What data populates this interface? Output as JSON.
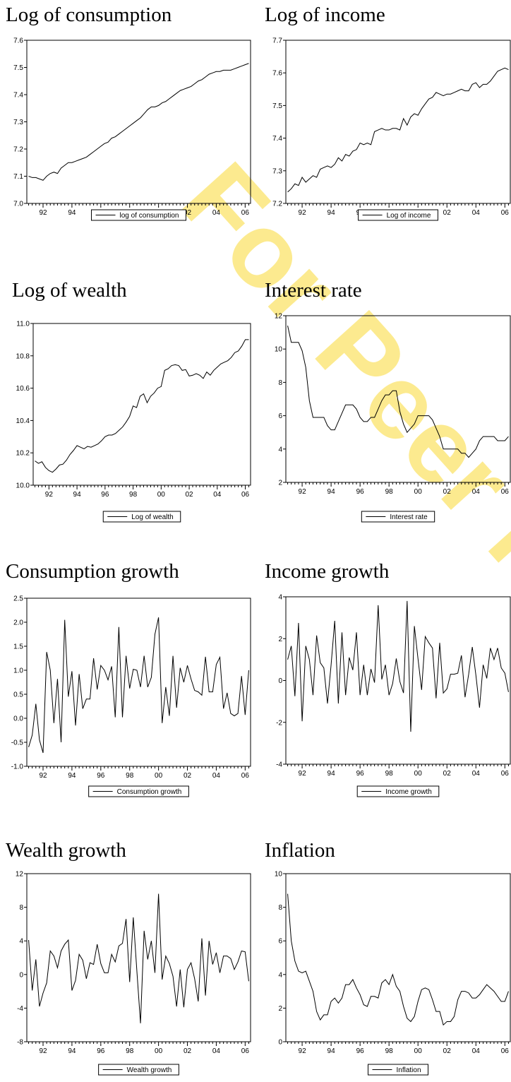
{
  "watermark": "For Peer Review",
  "chart_data": [
    {
      "type": "line",
      "title": "Log of consumption",
      "legend": "bottom",
      "categories": [
        null,
        null,
        null,
        null,
        "92",
        null,
        null,
        null,
        null,
        null,
        null,
        null,
        "94",
        null,
        null,
        null,
        null,
        null,
        null,
        null,
        "96",
        null,
        null,
        null,
        null,
        null,
        null,
        null,
        "98",
        null,
        null,
        null,
        null,
        null,
        null,
        null,
        "00",
        null,
        null,
        null,
        null,
        null,
        null,
        null,
        "02",
        null,
        null,
        null,
        null,
        null,
        null,
        null,
        "04",
        null,
        null,
        null,
        null,
        null,
        null,
        null,
        "06",
        null
      ],
      "series": [
        {
          "name": "log of consumption",
          "color": "#000000",
          "values": [
            7.1,
            7.095,
            7.095,
            7.09,
            7.085,
            7.1,
            7.11,
            7.115,
            7.11,
            7.13,
            7.14,
            7.15,
            7.15,
            7.155,
            7.16,
            7.165,
            7.17,
            7.18,
            7.19,
            7.2,
            7.21,
            7.22,
            7.225,
            7.24,
            7.245,
            7.255,
            7.265,
            7.275,
            7.285,
            7.295,
            7.305,
            7.315,
            7.33,
            7.345,
            7.355,
            7.355,
            7.36,
            7.37,
            7.375,
            7.385,
            7.395,
            7.405,
            7.415,
            7.42,
            7.425,
            7.43,
            7.44,
            7.45,
            7.455,
            7.465,
            7.475,
            7.48,
            7.485,
            7.485,
            7.49,
            7.49,
            7.49,
            7.495,
            7.5,
            7.505,
            7.51,
            7.515
          ]
        }
      ],
      "ylim": [
        7.0,
        7.6
      ],
      "yticks": [
        {
          "value": 7,
          "label": "7.0"
        },
        7.1,
        7.2,
        7.3,
        7.4,
        7.5,
        7.6
      ]
    },
    {
      "type": "line",
      "title": "Log of income",
      "legend": "bottom",
      "categories": [
        null,
        null,
        null,
        null,
        "92",
        null,
        null,
        null,
        null,
        null,
        null,
        null,
        "94",
        null,
        null,
        null,
        null,
        null,
        null,
        null,
        "96",
        null,
        null,
        null,
        null,
        null,
        null,
        null,
        "98",
        null,
        null,
        null,
        null,
        null,
        null,
        null,
        "00",
        null,
        null,
        null,
        null,
        null,
        null,
        null,
        "02",
        null,
        null,
        null,
        null,
        null,
        null,
        null,
        "04",
        null,
        null,
        null,
        null,
        null,
        null,
        null,
        "06",
        null
      ],
      "series": [
        {
          "name": "Log of income",
          "color": "#000000",
          "values": [
            7.235,
            7.245,
            7.26,
            7.255,
            7.28,
            7.265,
            7.275,
            7.285,
            7.28,
            7.305,
            7.31,
            7.315,
            7.31,
            7.32,
            7.34,
            7.33,
            7.35,
            7.345,
            7.36,
            7.365,
            7.385,
            7.38,
            7.385,
            7.38,
            7.42,
            7.425,
            7.43,
            7.425,
            7.425,
            7.43,
            7.43,
            7.425,
            7.46,
            7.44,
            7.465,
            7.475,
            7.47,
            7.49,
            7.505,
            7.52,
            7.525,
            7.54,
            7.535,
            7.53,
            7.535,
            7.535,
            7.54,
            7.545,
            7.55,
            7.545,
            7.545,
            7.565,
            7.57,
            7.555,
            7.565,
            7.565,
            7.575,
            7.59,
            7.605,
            7.61,
            7.615,
            7.61
          ]
        }
      ],
      "ylim": [
        7.2,
        7.7
      ],
      "yticks": [
        7.2,
        7.3,
        7.4,
        7.5,
        7.6,
        7.7
      ]
    },
    {
      "type": "line",
      "title": "Log of wealth",
      "legend": "bottom",
      "categories": [
        null,
        null,
        null,
        null,
        "92",
        null,
        null,
        null,
        null,
        null,
        null,
        null,
        "94",
        null,
        null,
        null,
        null,
        null,
        null,
        null,
        "96",
        null,
        null,
        null,
        null,
        null,
        null,
        null,
        "98",
        null,
        null,
        null,
        null,
        null,
        null,
        null,
        "00",
        null,
        null,
        null,
        null,
        null,
        null,
        null,
        "02",
        null,
        null,
        null,
        null,
        null,
        null,
        null,
        "04",
        null,
        null,
        null,
        null,
        null,
        null,
        null,
        "06",
        null
      ],
      "series": [
        {
          "name": "Log of wealth",
          "color": "#000000",
          "values": [
            10.15,
            10.135,
            10.145,
            10.11,
            10.09,
            10.08,
            10.1,
            10.125,
            10.13,
            10.155,
            10.19,
            10.215,
            10.245,
            10.235,
            10.225,
            10.24,
            10.235,
            10.245,
            10.255,
            10.275,
            10.3,
            10.31,
            10.31,
            10.32,
            10.34,
            10.36,
            10.39,
            10.425,
            10.49,
            10.48,
            10.55,
            10.565,
            10.51,
            10.55,
            10.57,
            10.6,
            10.61,
            10.71,
            10.72,
            10.74,
            10.745,
            10.74,
            10.71,
            10.715,
            10.675,
            10.68,
            10.69,
            10.68,
            10.66,
            10.7,
            10.68,
            10.71,
            10.73,
            10.75,
            10.76,
            10.77,
            10.79,
            10.82,
            10.83,
            10.86,
            10.9,
            10.9
          ]
        }
      ],
      "ylim": [
        10.0,
        11.0
      ],
      "yticks": [
        {
          "value": 10,
          "label": "10.0"
        },
        10.2,
        10.4,
        10.6,
        10.8,
        {
          "value": 11,
          "label": "11.0"
        }
      ]
    },
    {
      "type": "line",
      "title": "Interest rate",
      "legend": "bottom",
      "categories": [
        null,
        null,
        null,
        null,
        "92",
        null,
        null,
        null,
        null,
        null,
        null,
        null,
        "94",
        null,
        null,
        null,
        null,
        null,
        null,
        null,
        "96",
        null,
        null,
        null,
        null,
        null,
        null,
        null,
        "98",
        null,
        null,
        null,
        null,
        null,
        null,
        null,
        "00",
        null,
        null,
        null,
        null,
        null,
        null,
        null,
        "02",
        null,
        null,
        null,
        null,
        null,
        null,
        null,
        "04",
        null,
        null,
        null,
        null,
        null,
        null,
        null,
        "06",
        null
      ],
      "series": [
        {
          "name": "Interest rate",
          "color": "#000000",
          "values": [
            11.4,
            10.4,
            10.4,
            10.4,
            9.9,
            8.9,
            6.9,
            5.9,
            5.9,
            5.9,
            5.9,
            5.4,
            5.15,
            5.15,
            5.65,
            6.15,
            6.65,
            6.65,
            6.65,
            6.4,
            5.9,
            5.65,
            5.65,
            5.9,
            5.9,
            6.4,
            6.9,
            7.25,
            7.25,
            7.5,
            7.5,
            6.25,
            5.5,
            5.0,
            5.25,
            5.5,
            6.0,
            6.0,
            6.0,
            6.0,
            5.75,
            5.25,
            4.75,
            4.0,
            4.0,
            4.0,
            4.0,
            4.0,
            3.75,
            3.75,
            3.5,
            3.75,
            4.0,
            4.5,
            4.75,
            4.75,
            4.75,
            4.75,
            4.5,
            4.5,
            4.5,
            4.75
          ]
        }
      ],
      "ylim": [
        2,
        12
      ],
      "yticks": [
        2,
        4,
        6,
        8,
        10,
        12
      ]
    },
    {
      "type": "line",
      "title": "Consumption growth",
      "legend": "bottom",
      "categories": [
        null,
        null,
        null,
        null,
        "92",
        null,
        null,
        null,
        null,
        null,
        null,
        null,
        "94",
        null,
        null,
        null,
        null,
        null,
        null,
        null,
        "96",
        null,
        null,
        null,
        null,
        null,
        null,
        null,
        "98",
        null,
        null,
        null,
        null,
        null,
        null,
        null,
        "00",
        null,
        null,
        null,
        null,
        null,
        null,
        null,
        "02",
        null,
        null,
        null,
        null,
        null,
        null,
        null,
        "04",
        null,
        null,
        null,
        null,
        null,
        null,
        null,
        "06",
        null
      ],
      "series": [
        {
          "name": "Consumption growth",
          "color": "#000000",
          "values": [
            -0.6,
            -0.35,
            0.3,
            -0.45,
            -0.72,
            1.38,
            1.0,
            -0.1,
            0.82,
            -0.5,
            2.05,
            0.45,
            0.98,
            -0.15,
            0.92,
            0.2,
            0.4,
            0.4,
            1.25,
            0.6,
            1.1,
            1.0,
            0.8,
            1.08,
            0.02,
            1.9,
            0.02,
            1.3,
            0.62,
            1.02,
            1.0,
            0.65,
            1.3,
            0.65,
            0.85,
            1.75,
            2.1,
            -0.1,
            0.65,
            0.05,
            1.3,
            0.22,
            1.05,
            0.75,
            1.1,
            0.82,
            0.58,
            0.55,
            0.48,
            1.28,
            0.55,
            0.55,
            1.12,
            1.27,
            0.2,
            0.53,
            0.1,
            0.05,
            0.1,
            0.88,
            0.07,
            1.0
          ]
        }
      ],
      "ylim": [
        -1.0,
        2.5
      ],
      "yticks": [
        {
          "value": -1,
          "label": "-1.0"
        },
        -0.5,
        {
          "value": 0,
          "label": "0.0"
        },
        0.5,
        {
          "value": 1,
          "label": "1.0"
        },
        1.5,
        {
          "value": 2,
          "label": "2.0"
        },
        2.5
      ]
    },
    {
      "type": "line",
      "title": "Income growth",
      "legend": "bottom",
      "categories": [
        null,
        null,
        null,
        null,
        "92",
        null,
        null,
        null,
        null,
        null,
        null,
        null,
        "94",
        null,
        null,
        null,
        null,
        null,
        null,
        null,
        "96",
        null,
        null,
        null,
        null,
        null,
        null,
        null,
        "98",
        null,
        null,
        null,
        null,
        null,
        null,
        null,
        "00",
        null,
        null,
        null,
        null,
        null,
        null,
        null,
        "02",
        null,
        null,
        null,
        null,
        null,
        null,
        null,
        "04",
        null,
        null,
        null,
        null,
        null,
        null,
        null,
        "06",
        null
      ],
      "series": [
        {
          "name": "Income growth",
          "color": "#000000",
          "values": [
            1.0,
            1.65,
            -0.75,
            2.75,
            -1.95,
            1.65,
            1.0,
            -0.7,
            2.15,
            0.85,
            0.6,
            -1.1,
            0.75,
            2.85,
            -1.1,
            2.3,
            -0.7,
            1.1,
            0.5,
            2.3,
            -0.7,
            0.75,
            -0.7,
            0.55,
            -0.1,
            3.6,
            0.05,
            0.75,
            -0.7,
            -0.15,
            1.05,
            -0.05,
            -0.6,
            3.8,
            -2.45,
            2.6,
            1.05,
            -0.45,
            2.1,
            1.8,
            1.55,
            -0.85,
            1.8,
            -0.6,
            -0.4,
            0.3,
            0.3,
            0.35,
            1.2,
            -0.8,
            0.3,
            1.6,
            0.25,
            -1.3,
            0.75,
            0.1,
            1.55,
            1.0,
            1.55,
            0.6,
            0.35,
            -0.55
          ]
        }
      ],
      "ylim": [
        -4,
        4
      ],
      "yticks": [
        -4,
        -2,
        0,
        2,
        4
      ]
    },
    {
      "type": "line",
      "title": "Wealth growth",
      "legend": "bottom",
      "categories": [
        null,
        null,
        null,
        null,
        "92",
        null,
        null,
        null,
        null,
        null,
        null,
        null,
        "94",
        null,
        null,
        null,
        null,
        null,
        null,
        null,
        "96",
        null,
        null,
        null,
        null,
        null,
        null,
        null,
        "98",
        null,
        null,
        null,
        null,
        null,
        null,
        null,
        "00",
        null,
        null,
        null,
        null,
        null,
        null,
        null,
        "02",
        null,
        null,
        null,
        null,
        null,
        null,
        null,
        "04",
        null,
        null,
        null,
        null,
        null,
        null,
        null,
        "06",
        null
      ],
      "series": [
        {
          "name": "Wealth growth",
          "color": "#000000",
          "values": [
            4.1,
            -1.9,
            1.8,
            -3.8,
            -2.2,
            -1.0,
            2.8,
            2.2,
            0.8,
            2.8,
            3.6,
            4.1,
            -1.9,
            -0.7,
            2.4,
            1.7,
            -0.5,
            1.4,
            1.2,
            3.6,
            1.3,
            0.2,
            0.2,
            2.4,
            1.5,
            3.4,
            3.7,
            6.6,
            -0.9,
            6.8,
            0.4,
            -5.8,
            5.2,
            1.8,
            4.0,
            0.2,
            9.6,
            -0.6,
            2.2,
            1.3,
            -0.2,
            -3.8,
            0.6,
            -3.9,
            0.6,
            1.4,
            -0.5,
            -3.2,
            4.3,
            -2.5,
            4.0,
            1.2,
            2.6,
            0.2,
            2.2,
            2.2,
            1.9,
            0.6,
            1.5,
            2.8,
            2.7,
            -0.8
          ]
        }
      ],
      "ylim": [
        -8,
        12
      ],
      "yticks": [
        -8,
        -4,
        0,
        4,
        8,
        12
      ]
    },
    {
      "type": "line",
      "title": "Inflation",
      "legend": "bottom",
      "categories": [
        null,
        null,
        null,
        null,
        "92",
        null,
        null,
        null,
        null,
        null,
        null,
        null,
        "94",
        null,
        null,
        null,
        null,
        null,
        null,
        null,
        "96",
        null,
        null,
        null,
        null,
        null,
        null,
        null,
        "98",
        null,
        null,
        null,
        null,
        null,
        null,
        null,
        "00",
        null,
        null,
        null,
        null,
        null,
        null,
        null,
        "02",
        null,
        null,
        null,
        null,
        null,
        null,
        null,
        "04",
        null,
        null,
        null,
        null,
        null,
        null,
        null,
        "06",
        null
      ],
      "series": [
        {
          "name": "Inflation",
          "color": "#000000",
          "values": [
            8.8,
            6.0,
            4.8,
            4.2,
            4.1,
            4.2,
            3.6,
            3.0,
            1.8,
            1.3,
            1.6,
            1.6,
            2.4,
            2.6,
            2.3,
            2.6,
            3.4,
            3.4,
            3.7,
            3.2,
            2.8,
            2.2,
            2.1,
            2.7,
            2.7,
            2.6,
            3.5,
            3.7,
            3.4,
            4.0,
            3.3,
            3.0,
            2.1,
            1.4,
            1.2,
            1.5,
            2.4,
            3.1,
            3.2,
            3.1,
            2.5,
            1.8,
            1.8,
            1.0,
            1.2,
            1.2,
            1.5,
            2.5,
            3.0,
            3.0,
            2.9,
            2.6,
            2.6,
            2.8,
            3.1,
            3.4,
            3.2,
            3.0,
            2.7,
            2.4,
            2.4,
            3.0
          ]
        }
      ],
      "ylim": [
        0,
        10
      ],
      "yticks": [
        0,
        2,
        4,
        6,
        8,
        10
      ]
    }
  ]
}
